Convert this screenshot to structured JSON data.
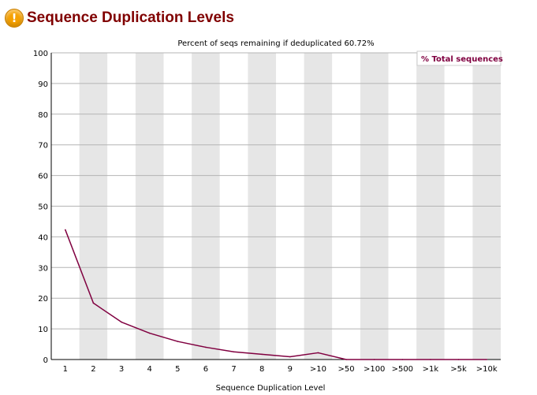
{
  "header": {
    "title": "Sequence Duplication Levels",
    "icon": "warning-icon"
  },
  "chart_data": {
    "type": "line",
    "title": "Percent of seqs remaining if deduplicated 60.72%",
    "xlabel": "Sequence Duplication Level",
    "ylabel": "",
    "categories": [
      "1",
      "2",
      "3",
      "4",
      "5",
      "6",
      "7",
      "8",
      "9",
      ">10",
      ">50",
      ">100",
      ">500",
      ">1k",
      ">5k",
      ">10k"
    ],
    "ylim": [
      0,
      100
    ],
    "yticks": [
      0,
      10,
      20,
      30,
      40,
      50,
      60,
      70,
      80,
      90,
      100
    ],
    "series": [
      {
        "name": "% Total sequences",
        "color": "#800040",
        "values": [
          42.3,
          18.4,
          12.2,
          8.6,
          5.9,
          4.0,
          2.5,
          1.7,
          0.9,
          2.2,
          0.0,
          0.0,
          0.0,
          0.0,
          0.0,
          0.0
        ]
      }
    ],
    "legend_position": "top-right",
    "grid": true,
    "band_colors": [
      "#ffffff",
      "#e6e6e6"
    ]
  }
}
